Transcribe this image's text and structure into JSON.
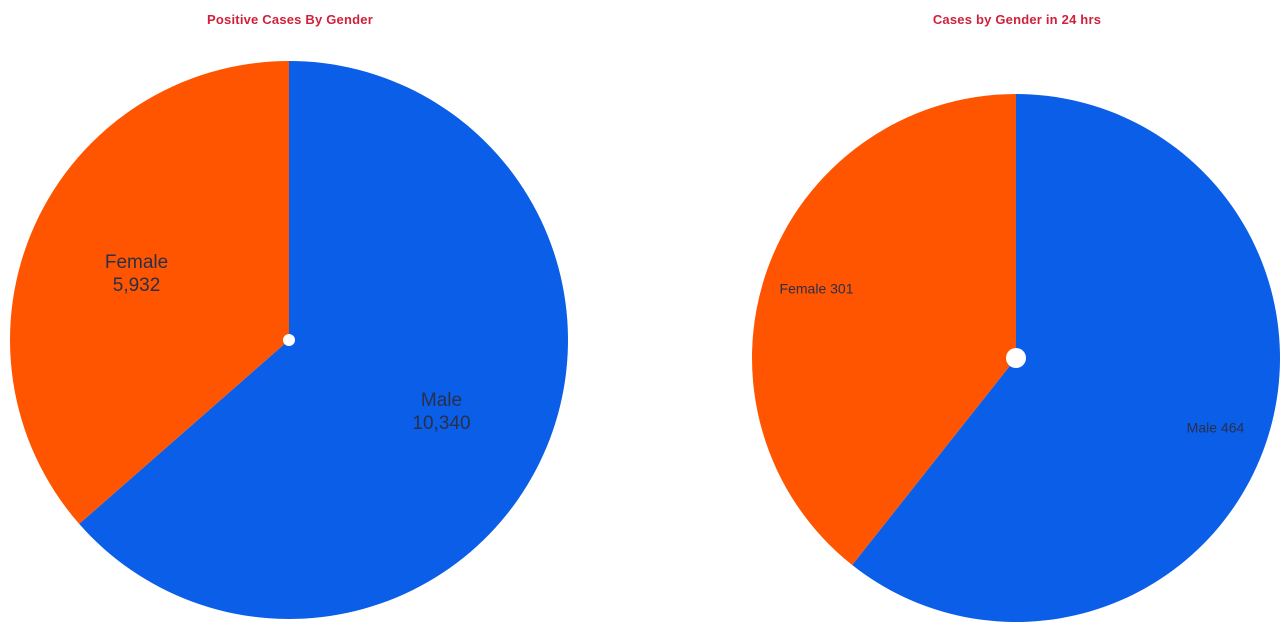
{
  "colors": {
    "male": "#0a5ee8",
    "female": "#ff5500",
    "title": "#d0213b",
    "label": "#2a2f4a"
  },
  "chart_data": [
    {
      "type": "pie",
      "title": "Positive Cases By Gender",
      "slices": [
        {
          "name": "Male",
          "value": 10340,
          "display": "10,340",
          "color": "#0a5ee8"
        },
        {
          "name": "Female",
          "value": 5932,
          "display": "5,932",
          "color": "#ff5500"
        }
      ],
      "label_style": "stacked",
      "start_angle_deg": 0,
      "direction": "clockwise"
    },
    {
      "type": "pie",
      "title": "Cases by Gender in 24 hrs",
      "slices": [
        {
          "name": "Male",
          "value": 464,
          "display": "464",
          "color": "#0a5ee8"
        },
        {
          "name": "Female",
          "value": 301,
          "display": "301",
          "color": "#ff5500"
        }
      ],
      "label_style": "inline",
      "start_angle_deg": 0,
      "direction": "clockwise"
    }
  ]
}
